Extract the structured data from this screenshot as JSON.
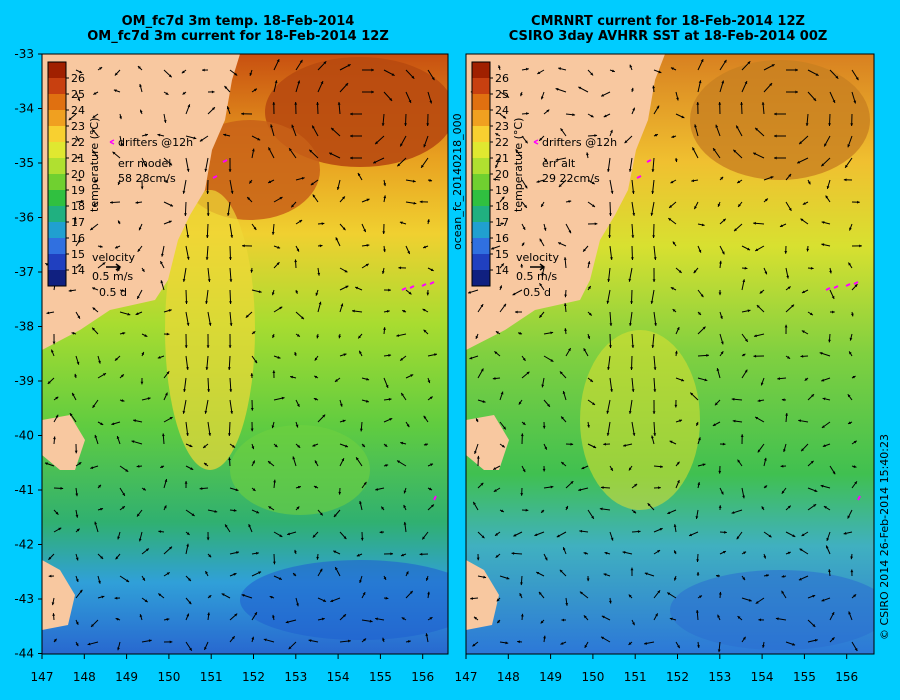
{
  "panels": [
    {
      "title_line1": "OM_fc7d 3m temp. 18-Feb-2014",
      "title_line2": "OM_fc7d 3m current for 18-Feb-2014 12Z",
      "drifters_label": "drifters @12h",
      "err_label": "err model",
      "err_value": "58 28cm/s"
    },
    {
      "title_line1": "CMRNRT current for 18-Feb-2014 12Z",
      "title_line2": "CSIRO 3day AVHRR SST at 18-Feb-2014 00Z",
      "drifters_label": "drifters @12h",
      "err_label": "err alt",
      "err_value": "29 22cm/s"
    }
  ],
  "colorbar": {
    "label": "temperature (°C)",
    "ticks": [
      "26",
      "25",
      "24",
      "23",
      "22",
      "21",
      "20",
      "19",
      "18",
      "17",
      "16",
      "15",
      "14"
    ],
    "colors": [
      "#a02000",
      "#c84010",
      "#e07010",
      "#f0a020",
      "#f8d030",
      "#e0e830",
      "#b0e030",
      "#70d030",
      "#30c040",
      "#20b080",
      "#20a0d0",
      "#3070e0",
      "#2040c0",
      "#102080"
    ]
  },
  "velocity_legend": {
    "label": "velocity",
    "speed": "0.5 m/s",
    "duration": "0.5 d"
  },
  "x_ticks": [
    "147",
    "148",
    "149",
    "150",
    "151",
    "152",
    "153",
    "154",
    "155",
    "156"
  ],
  "y_ticks": [
    "-33",
    "-34",
    "-35",
    "-36",
    "-37",
    "-38",
    "-39",
    "-40",
    "-41",
    "-42",
    "-43",
    "-44"
  ],
  "file_label": "ocean_fc_20140218_000",
  "credit": "© CSIRO 2014   26-Feb-2014 15:40:23",
  "colors": {
    "background": "#00ccff",
    "land": "#f8c8a0",
    "drifter": "#ff00ff"
  }
}
